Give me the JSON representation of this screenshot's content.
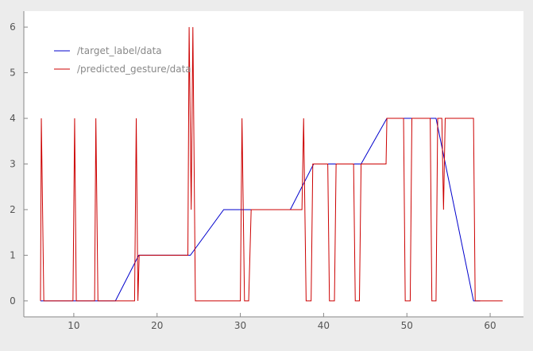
{
  "chart_data": {
    "type": "line",
    "xlim": [
      4,
      64
    ],
    "ylim": [
      -0.35,
      6.35
    ],
    "xticks": [
      10,
      20,
      30,
      40,
      50,
      60
    ],
    "yticks": [
      0,
      1,
      2,
      3,
      4,
      5,
      6
    ],
    "grid": false,
    "legend_position": "top-left",
    "series": [
      {
        "name": "/target_label/data",
        "color": "#0000cc",
        "points": [
          [
            6.0,
            0
          ],
          [
            15.0,
            0
          ],
          [
            17.8,
            1
          ],
          [
            24.0,
            1
          ],
          [
            28.0,
            2
          ],
          [
            36.0,
            2
          ],
          [
            38.8,
            3
          ],
          [
            44.5,
            3
          ],
          [
            47.6,
            4
          ],
          [
            53.5,
            4
          ],
          [
            58.0,
            0
          ],
          [
            58.8,
            0
          ]
        ]
      },
      {
        "name": "/predicted_gesture/data",
        "color": "#cc0000",
        "points": [
          [
            6.0,
            0
          ],
          [
            6.1,
            4
          ],
          [
            6.4,
            0
          ],
          [
            9.9,
            0
          ],
          [
            10.1,
            4
          ],
          [
            10.3,
            0
          ],
          [
            12.5,
            0
          ],
          [
            12.65,
            4
          ],
          [
            12.9,
            0
          ],
          [
            17.3,
            0
          ],
          [
            17.5,
            4
          ],
          [
            17.7,
            0
          ],
          [
            17.85,
            1
          ],
          [
            23.7,
            1
          ],
          [
            23.85,
            6
          ],
          [
            24.1,
            2
          ],
          [
            24.3,
            6
          ],
          [
            24.6,
            0
          ],
          [
            30.0,
            0
          ],
          [
            30.2,
            4
          ],
          [
            30.5,
            0
          ],
          [
            31.0,
            0
          ],
          [
            31.3,
            2
          ],
          [
            37.4,
            2
          ],
          [
            37.6,
            4
          ],
          [
            37.9,
            0
          ],
          [
            38.5,
            0
          ],
          [
            38.7,
            3
          ],
          [
            40.5,
            3
          ],
          [
            40.7,
            0
          ],
          [
            41.3,
            0
          ],
          [
            41.5,
            3
          ],
          [
            43.6,
            3
          ],
          [
            43.8,
            0
          ],
          [
            44.3,
            0
          ],
          [
            44.5,
            3
          ],
          [
            47.5,
            3
          ],
          [
            47.6,
            4
          ],
          [
            49.6,
            4
          ],
          [
            49.8,
            0
          ],
          [
            50.4,
            0
          ],
          [
            50.6,
            4
          ],
          [
            52.8,
            4
          ],
          [
            53.0,
            0
          ],
          [
            53.5,
            0
          ],
          [
            53.7,
            4
          ],
          [
            54.2,
            4
          ],
          [
            54.4,
            2
          ],
          [
            54.6,
            4
          ],
          [
            58.0,
            4
          ],
          [
            58.2,
            0
          ],
          [
            61.5,
            0
          ]
        ]
      }
    ]
  }
}
